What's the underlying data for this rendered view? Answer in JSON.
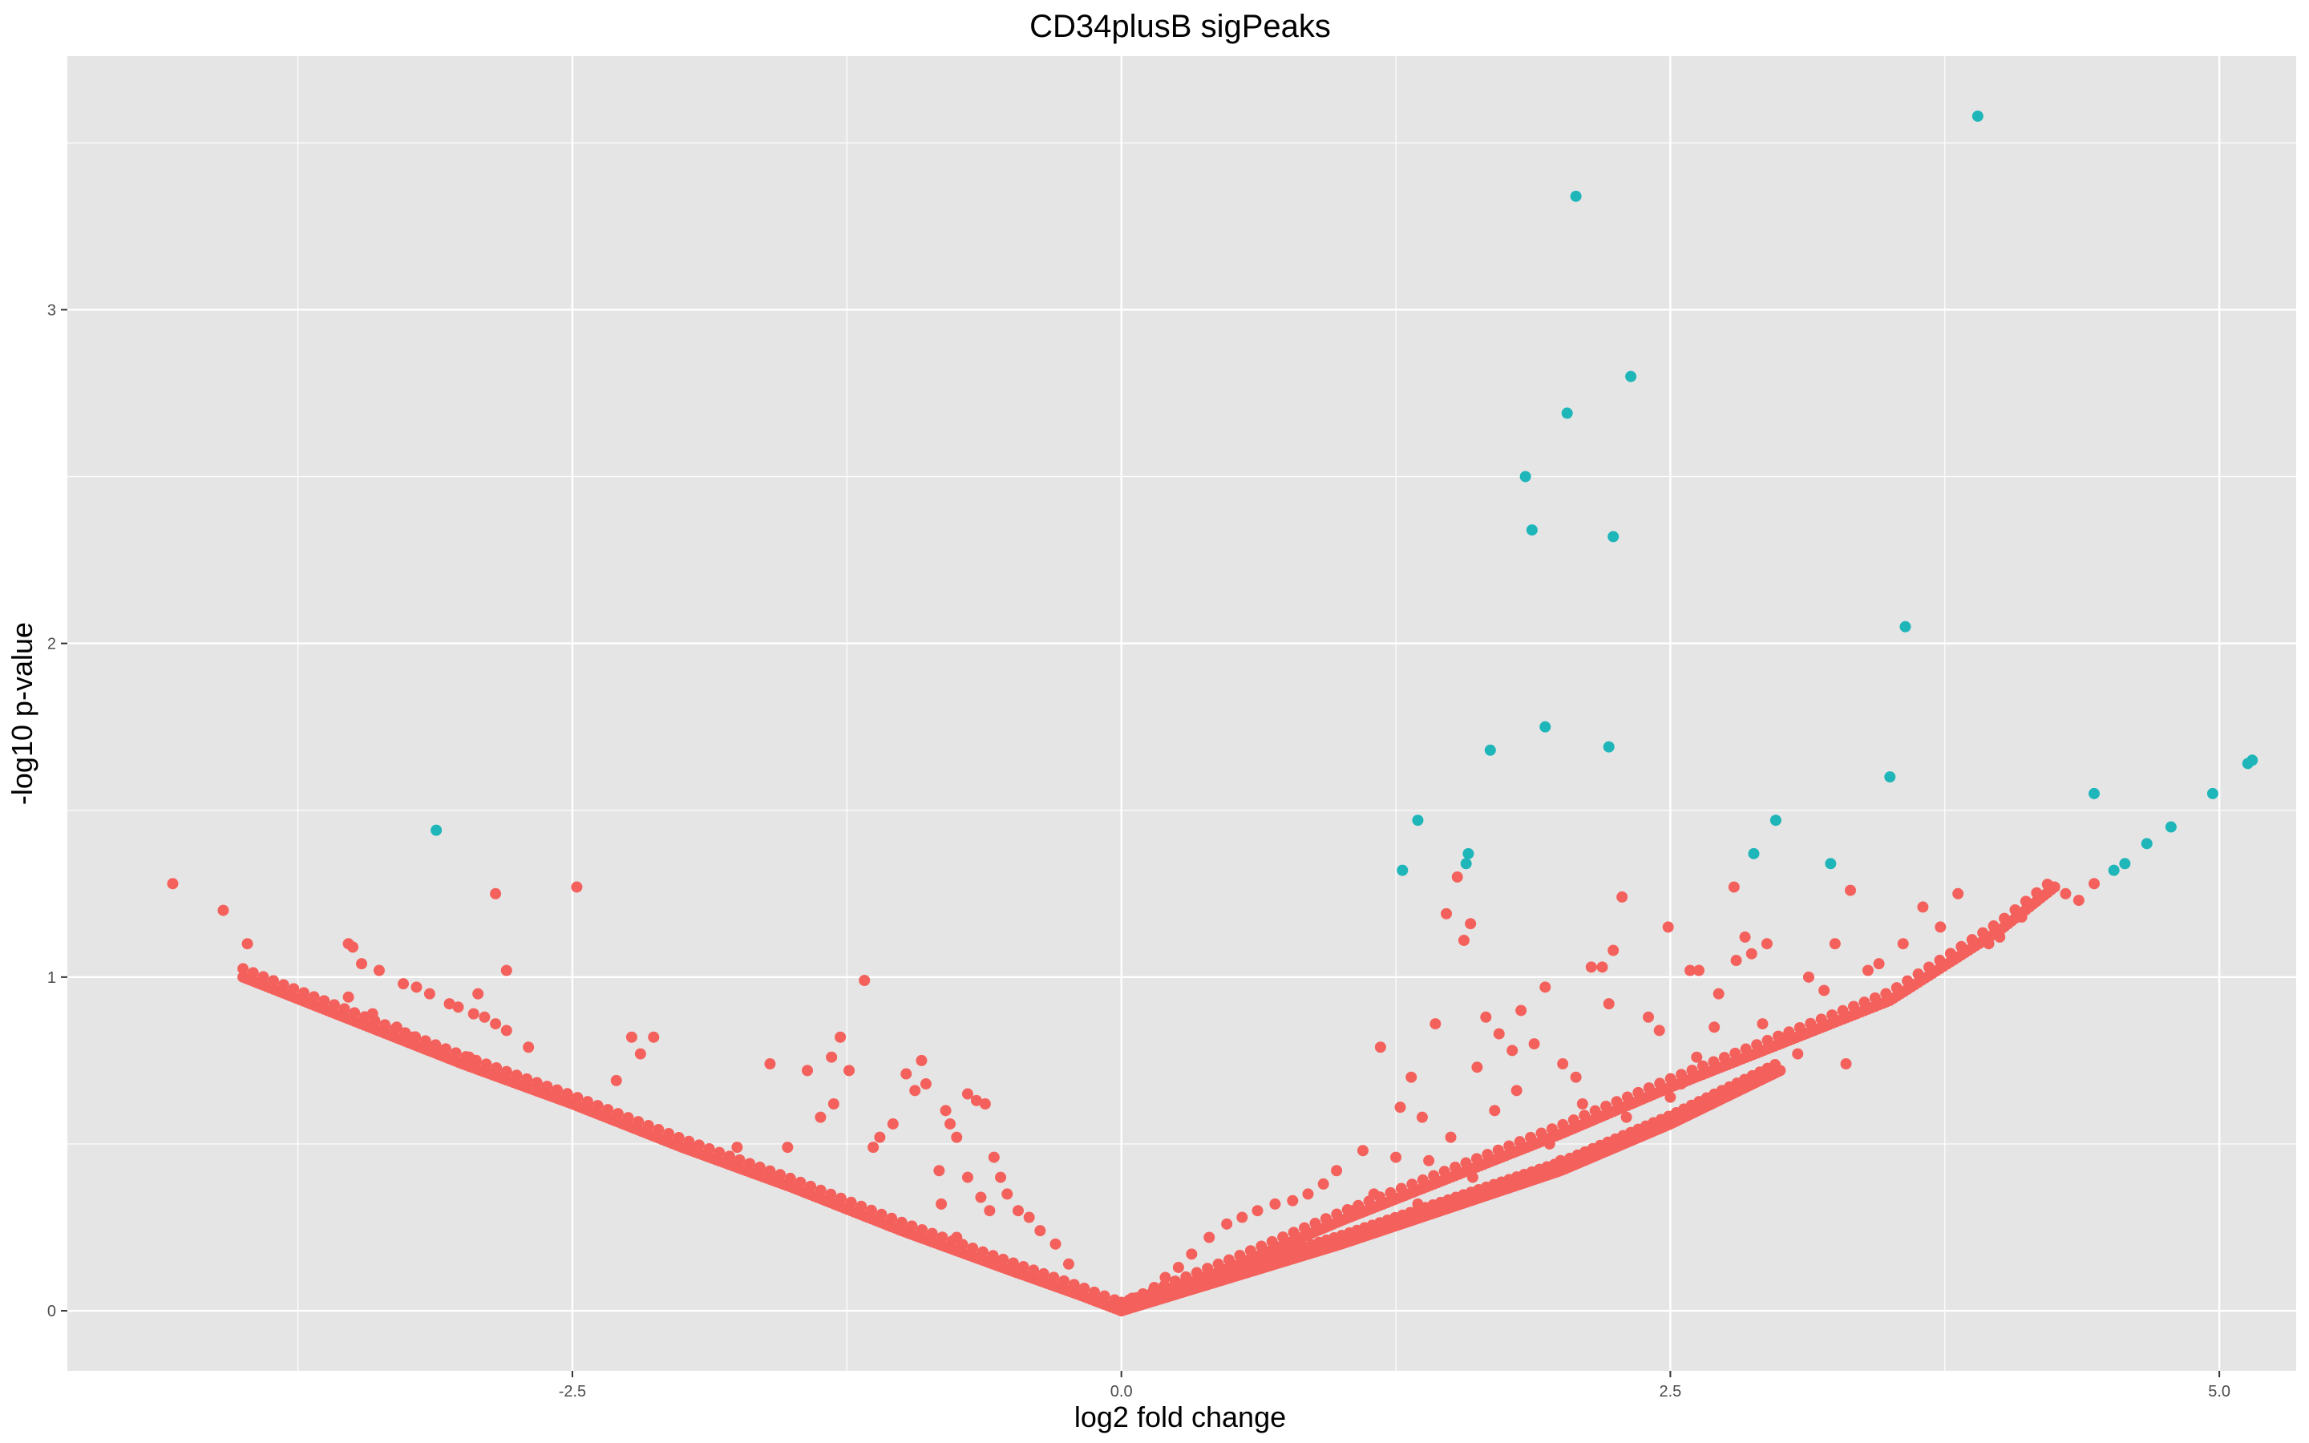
{
  "chart_data": {
    "type": "scatter",
    "title": "CD34plusB sigPeaks",
    "xlabel": "log2 fold change",
    "ylabel": "-log10 p-value",
    "xlim": [
      -4.8,
      5.35
    ],
    "ylim": [
      -0.18,
      3.76
    ],
    "xticks": [
      -2.5,
      0.0,
      2.5,
      5.0
    ],
    "xtick_labels": [
      "-2.5",
      "0.0",
      "2.5",
      "5.0"
    ],
    "yticks": [
      0,
      1,
      2,
      3
    ],
    "ytick_labels": [
      "0",
      "1",
      "2",
      "3"
    ],
    "grid": true,
    "legend": "none",
    "colors": {
      "panel": "#e5e5e5",
      "grid": "#ffffff",
      "significant": "#1fb6b9",
      "not_significant": "#f4615c"
    },
    "series": [
      {
        "group": "significant",
        "color": "#1fb6b9",
        "points": [
          [
            3.9,
            3.58
          ],
          [
            2.07,
            3.34
          ],
          [
            2.32,
            2.8
          ],
          [
            2.03,
            2.69
          ],
          [
            1.84,
            2.5
          ],
          [
            1.87,
            2.34
          ],
          [
            2.24,
            2.32
          ],
          [
            3.57,
            2.05
          ],
          [
            1.93,
            1.75
          ],
          [
            2.22,
            1.69
          ],
          [
            1.68,
            1.68
          ],
          [
            3.5,
            1.6
          ],
          [
            5.15,
            1.65
          ],
          [
            5.13,
            1.64
          ],
          [
            4.43,
            1.55
          ],
          [
            4.97,
            1.55
          ],
          [
            1.35,
            1.47
          ],
          [
            2.98,
            1.47
          ],
          [
            4.78,
            1.45
          ],
          [
            -3.12,
            1.44
          ],
          [
            4.67,
            1.4
          ],
          [
            1.58,
            1.37
          ],
          [
            2.88,
            1.37
          ],
          [
            1.57,
            1.34
          ],
          [
            3.23,
            1.34
          ],
          [
            4.57,
            1.34
          ],
          [
            4.52,
            1.32
          ],
          [
            1.28,
            1.32
          ]
        ]
      },
      {
        "group": "not_significant",
        "color": "#f4615c",
        "points": [
          [
            -4.32,
            1.28
          ],
          [
            -4.09,
            1.2
          ],
          [
            -3.98,
            1.1
          ],
          [
            -3.52,
            1.1
          ],
          [
            -3.5,
            1.09
          ],
          [
            -3.46,
            1.04
          ],
          [
            -3.38,
            1.02
          ],
          [
            -3.52,
            0.94
          ],
          [
            -3.41,
            0.89
          ],
          [
            -3.27,
            0.98
          ],
          [
            -3.21,
            0.97
          ],
          [
            -3.15,
            0.95
          ],
          [
            -3.06,
            0.92
          ],
          [
            -3.02,
            0.91
          ],
          [
            -2.95,
            0.89
          ],
          [
            -2.9,
            0.88
          ],
          [
            -2.85,
            0.86
          ],
          [
            -2.8,
            0.84
          ],
          [
            -3.3,
            0.85
          ],
          [
            -3.23,
            0.82
          ],
          [
            -3.17,
            0.8
          ],
          [
            -3.1,
            0.78
          ],
          [
            -2.97,
            0.76
          ],
          [
            -2.7,
            0.79
          ],
          [
            -2.93,
            0.95
          ],
          [
            -2.8,
            1.02
          ],
          [
            -2.85,
            1.25
          ],
          [
            -2.48,
            1.27
          ],
          [
            -2.23,
            0.82
          ],
          [
            -2.13,
            0.82
          ],
          [
            -2.19,
            0.77
          ],
          [
            -2.3,
            0.69
          ],
          [
            -1.93,
            0.49
          ],
          [
            -1.75,
            0.49
          ],
          [
            -1.6,
            0.74
          ],
          [
            -1.52,
            0.49
          ],
          [
            -1.43,
            0.72
          ],
          [
            -1.37,
            0.58
          ],
          [
            -1.31,
            0.62
          ],
          [
            -1.32,
            0.76
          ],
          [
            -1.28,
            0.82
          ],
          [
            -1.24,
            0.72
          ],
          [
            -1.17,
            0.99
          ],
          [
            -1.13,
            0.49
          ],
          [
            -1.1,
            0.52
          ],
          [
            -1.04,
            0.56
          ],
          [
            -0.98,
            0.71
          ],
          [
            -0.94,
            0.66
          ],
          [
            -0.91,
            0.75
          ],
          [
            -0.89,
            0.68
          ],
          [
            -0.83,
            0.42
          ],
          [
            -0.8,
            0.6
          ],
          [
            -0.78,
            0.56
          ],
          [
            -0.75,
            0.52
          ],
          [
            -0.7,
            0.65
          ],
          [
            -0.66,
            0.63
          ],
          [
            -0.62,
            0.62
          ],
          [
            -0.58,
            0.46
          ],
          [
            -0.55,
            0.4
          ],
          [
            -0.52,
            0.35
          ],
          [
            -0.47,
            0.3
          ],
          [
            -0.42,
            0.28
          ],
          [
            -0.37,
            0.24
          ],
          [
            -0.3,
            0.2
          ],
          [
            -0.24,
            0.14
          ],
          [
            -0.7,
            0.4
          ],
          [
            -0.64,
            0.34
          ],
          [
            -0.6,
            0.3
          ],
          [
            -0.82,
            0.32
          ],
          [
            -0.75,
            0.22
          ],
          [
            1.18,
            0.79
          ],
          [
            1.27,
            0.61
          ],
          [
            1.32,
            0.7
          ],
          [
            1.37,
            0.58
          ],
          [
            1.43,
            0.86
          ],
          [
            1.48,
            1.19
          ],
          [
            1.53,
            1.3
          ],
          [
            1.56,
            1.11
          ],
          [
            1.59,
            1.16
          ],
          [
            1.62,
            0.73
          ],
          [
            1.66,
            0.88
          ],
          [
            1.72,
            0.83
          ],
          [
            1.78,
            0.78
          ],
          [
            1.82,
            0.9
          ],
          [
            1.88,
            0.8
          ],
          [
            1.93,
            0.97
          ],
          [
            2.01,
            0.74
          ],
          [
            2.07,
            0.7
          ],
          [
            2.14,
            1.03
          ],
          [
            2.19,
            1.03
          ],
          [
            2.22,
            0.92
          ],
          [
            2.24,
            1.08
          ],
          [
            2.28,
            1.24
          ],
          [
            2.4,
            0.88
          ],
          [
            2.45,
            0.84
          ],
          [
            2.49,
            1.15
          ],
          [
            2.59,
            1.02
          ],
          [
            2.63,
            1.02
          ],
          [
            2.72,
            0.95
          ],
          [
            2.8,
            1.05
          ],
          [
            2.84,
            1.12
          ],
          [
            2.87,
            1.07
          ],
          [
            2.94,
            1.1
          ],
          [
            2.79,
            1.27
          ],
          [
            3.13,
            1.0
          ],
          [
            3.2,
            0.96
          ],
          [
            3.32,
            1.26
          ],
          [
            3.25,
            1.1
          ],
          [
            3.45,
            1.04
          ],
          [
            3.4,
            1.02
          ],
          [
            3.56,
            1.1
          ],
          [
            3.65,
            1.21
          ],
          [
            3.73,
            1.15
          ],
          [
            3.81,
            1.25
          ],
          [
            2.7,
            0.85
          ],
          [
            2.62,
            0.76
          ],
          [
            2.55,
            0.68
          ],
          [
            2.92,
            0.86
          ],
          [
            3.0,
            0.82
          ],
          [
            3.08,
            0.77
          ],
          [
            3.3,
            0.74
          ],
          [
            1.25,
            0.46
          ],
          [
            1.1,
            0.48
          ],
          [
            0.98,
            0.42
          ],
          [
            0.92,
            0.38
          ],
          [
            0.85,
            0.35
          ],
          [
            0.78,
            0.33
          ],
          [
            0.7,
            0.32
          ],
          [
            0.62,
            0.3
          ],
          [
            0.55,
            0.28
          ],
          [
            0.48,
            0.26
          ],
          [
            0.4,
            0.22
          ],
          [
            0.32,
            0.17
          ],
          [
            0.26,
            0.13
          ],
          [
            0.2,
            0.1
          ],
          [
            0.15,
            0.07
          ],
          [
            0.1,
            0.05
          ],
          [
            1.05,
            0.3
          ],
          [
            1.15,
            0.35
          ],
          [
            1.4,
            0.45
          ],
          [
            1.5,
            0.52
          ],
          [
            1.7,
            0.6
          ],
          [
            1.8,
            0.66
          ],
          [
            1.95,
            0.5
          ],
          [
            2.1,
            0.62
          ],
          [
            2.3,
            0.58
          ],
          [
            2.5,
            0.64
          ],
          [
            2.0,
            0.45
          ],
          [
            1.6,
            0.4
          ],
          [
            1.35,
            0.32
          ],
          [
            4.1,
            1.18
          ],
          [
            4.18,
            1.24
          ],
          [
            4.24,
            1.27
          ],
          [
            4.36,
            1.23
          ],
          [
            4.43,
            1.28
          ],
          [
            4.3,
            1.25
          ],
          [
            4.0,
            1.12
          ],
          [
            3.95,
            1.1
          ]
        ],
        "trends": [
          {
            "side": "negative",
            "x": [
              -4.0,
              -3.5,
              -3.0,
              -2.5,
              -2.0,
              -1.5,
              -1.0,
              -0.5,
              -0.2,
              0.0
            ],
            "y": [
              1.0,
              0.87,
              0.74,
              0.62,
              0.49,
              0.37,
              0.24,
              0.12,
              0.05,
              0.0
            ]
          },
          {
            "side": "positive-upper",
            "x": [
              0.0,
              0.5,
              1.0,
              1.5,
              2.0,
              2.5,
              3.0,
              3.5,
              4.0,
              4.25
            ],
            "y": [
              0.0,
              0.13,
              0.27,
              0.4,
              0.53,
              0.67,
              0.8,
              0.93,
              1.14,
              1.27
            ]
          },
          {
            "side": "positive-lower",
            "x": [
              0.0,
              0.5,
              1.0,
              1.5,
              2.0,
              2.5,
              3.0
            ],
            "y": [
              0.0,
              0.1,
              0.2,
              0.31,
              0.42,
              0.56,
              0.72
            ]
          }
        ]
      }
    ]
  }
}
